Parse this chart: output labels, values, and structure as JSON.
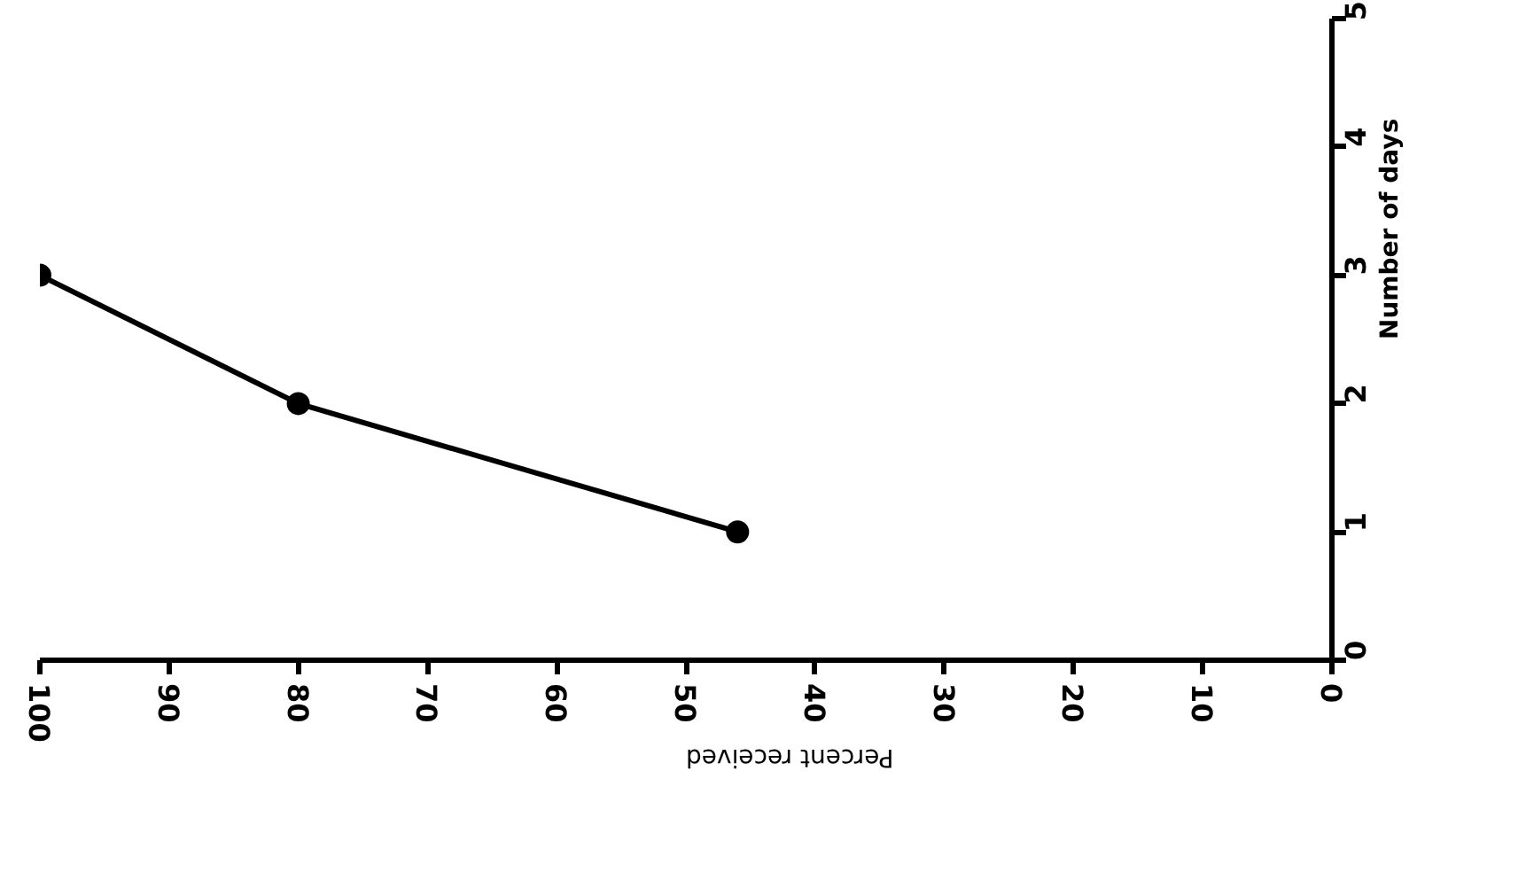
{
  "chart_data": {
    "type": "line",
    "xlabel": "Percent received",
    "ylabel": "Number of days",
    "x": [
      100,
      80,
      46
    ],
    "series": [
      {
        "color": "#000000",
        "values": [
          3,
          2,
          1
        ]
      }
    ],
    "xlim": [
      100,
      0
    ],
    "xticks": [
      100,
      90,
      80,
      70,
      60,
      50,
      40,
      30,
      20,
      10,
      0
    ],
    "ylim": [
      0,
      5
    ],
    "yticks": [
      0,
      1,
      2,
      3,
      4,
      5
    ],
    "marker": "circle",
    "line_style": "solid",
    "grid": false
  }
}
